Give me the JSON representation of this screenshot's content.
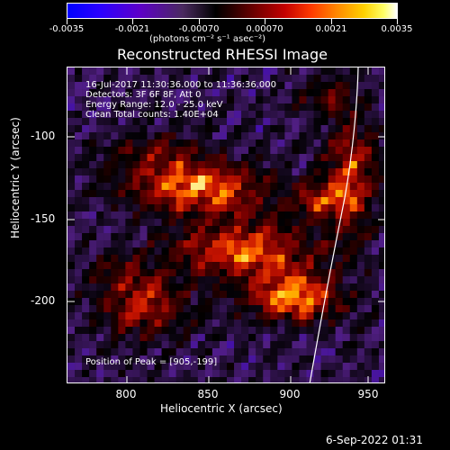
{
  "colorbar": {
    "tick_labels": [
      "-0.0035",
      "-0.0021",
      "-0.00070",
      "0.00070",
      "0.0021",
      "0.0035"
    ],
    "unit": "(photons cm⁻² s⁻¹ asec⁻²)"
  },
  "plot": {
    "title": "Reconstructed RHESSI Image",
    "overlay_lines": [
      "16-Jul-2017 11:30:36.000 to 11:36:36.000",
      "Detectors: 3F 6F 8F, Att 0",
      "Energy Range: 12.0 - 25.0 keV",
      "Clean     Total counts: 1.40E+04"
    ],
    "peak_text": "Position of Peak = [905,-199]",
    "x_axis": {
      "title": "Heliocentric X (arcsec)",
      "ticks": [
        "800",
        "850",
        "900",
        "950"
      ]
    },
    "y_axis": {
      "title": "Heliocentric Y (arcsec)",
      "ticks": [
        "-100",
        "-150",
        "-200"
      ]
    }
  },
  "footer": {
    "timestamp": "6-Sep-2022 01:31"
  }
}
